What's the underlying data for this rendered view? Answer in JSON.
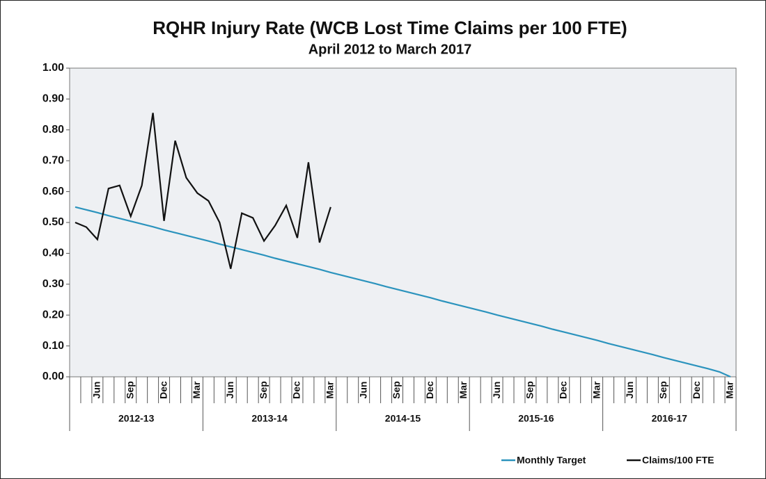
{
  "chart_data": {
    "type": "line",
    "title": "RQHR Injury Rate (WCB Lost Time Claims per 100 FTE)",
    "subtitle": "April 2012 to March 2017",
    "categories": [
      null,
      null,
      "Jun",
      null,
      null,
      "Sep",
      null,
      null,
      "Dec",
      null,
      null,
      "Mar",
      null,
      null,
      "Jun",
      null,
      null,
      "Sep",
      null,
      null,
      "Dec",
      null,
      null,
      "Mar",
      null,
      null,
      "Jun",
      null,
      null,
      "Sep",
      null,
      null,
      "Dec",
      null,
      null,
      "Mar",
      null,
      null,
      "Jun",
      null,
      null,
      "Sep",
      null,
      null,
      "Dec",
      null,
      null,
      "Mar",
      null,
      null,
      "Jun",
      null,
      null,
      "Sep",
      null,
      null,
      "Dec",
      null,
      null,
      "Mar"
    ],
    "groups": [
      "2012-13",
      "2013-14",
      "2014-15",
      "2015-16",
      "2016-17"
    ],
    "series": [
      {
        "name": "Monthly Target",
        "color": "#2b93bd",
        "values": [
          0.55,
          0.541,
          0.532,
          0.522,
          0.513,
          0.504,
          0.495,
          0.486,
          0.476,
          0.467,
          0.458,
          0.449,
          0.44,
          0.43,
          0.421,
          0.412,
          0.403,
          0.394,
          0.384,
          0.375,
          0.366,
          0.357,
          0.348,
          0.338,
          0.329,
          0.32,
          0.311,
          0.302,
          0.292,
          0.283,
          0.274,
          0.265,
          0.256,
          0.246,
          0.237,
          0.228,
          0.219,
          0.21,
          0.2,
          0.191,
          0.182,
          0.173,
          0.164,
          0.154,
          0.145,
          0.136,
          0.127,
          0.118,
          0.108,
          0.099,
          0.09,
          0.081,
          0.072,
          0.062,
          0.053,
          0.044,
          0.035,
          0.026,
          0.016,
          0
        ]
      },
      {
        "name": "Claims/100 FTE",
        "color": "#111111",
        "values": [
          0.5,
          0.485,
          0.445,
          0.61,
          0.62,
          0.52,
          0.62,
          0.855,
          0.505,
          0.765,
          0.645,
          0.595,
          0.57,
          0.5,
          0.35,
          0.53,
          0.515,
          0.44,
          0.49,
          0.555,
          0.45,
          0.695,
          0.435,
          0.55,
          null,
          null,
          null,
          null,
          null,
          null,
          null,
          null,
          null,
          null,
          null,
          null,
          null,
          null,
          null,
          null,
          null,
          null,
          null,
          null,
          null,
          null,
          null,
          null,
          null,
          null,
          null,
          null,
          null,
          null,
          null,
          null,
          null,
          null,
          null,
          null
        ]
      }
    ],
    "ylim": [
      0,
      1
    ],
    "yticks": [
      {
        "value": 0,
        "label": "0.00"
      },
      {
        "value": 0.1,
        "label": "0.10"
      },
      {
        "value": 0.2,
        "label": "0.20"
      },
      {
        "value": 0.3,
        "label": "0.30"
      },
      {
        "value": 0.4,
        "label": "0.40"
      },
      {
        "value": 0.5,
        "label": "0.50"
      },
      {
        "value": 0.6,
        "label": "0.60"
      },
      {
        "value": 0.7,
        "label": "0.70"
      },
      {
        "value": 0.8,
        "label": "0.80"
      },
      {
        "value": 0.9,
        "label": "0.90"
      },
      {
        "value": 1,
        "label": "1.00"
      }
    ],
    "grid": false,
    "legend": "bottom-right"
  }
}
